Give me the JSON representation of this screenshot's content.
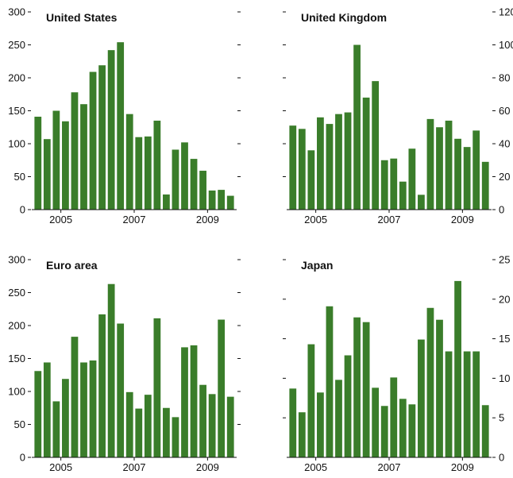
{
  "chart_data": [
    {
      "type": "bar",
      "title": "United States",
      "x_tick_labels": [
        "2005",
        "2007",
        "2009"
      ],
      "ylim": [
        0,
        300
      ],
      "y_ticks_left": [
        0,
        50,
        100,
        150,
        200,
        250,
        300
      ],
      "y_ticks_right": [],
      "right_dashes": 6,
      "values": [
        141,
        107,
        150,
        134,
        178,
        160,
        209,
        219,
        242,
        254,
        145,
        110,
        111,
        135,
        23,
        91,
        102,
        77,
        59,
        29,
        30,
        21
      ],
      "color": "#3a7d2a"
    },
    {
      "type": "bar",
      "title": "United Kingdom",
      "x_tick_labels": [
        "2005",
        "2007",
        "2009"
      ],
      "ylim": [
        0,
        120
      ],
      "y_ticks_left": [],
      "left_dashes": 6,
      "y_ticks_right": [
        0,
        20,
        40,
        60,
        80,
        100,
        120
      ],
      "values": [
        51,
        49,
        36,
        56,
        52,
        58,
        59,
        100,
        68,
        78,
        30,
        31,
        17,
        37,
        9,
        55,
        50,
        54,
        43,
        38,
        48,
        29
      ],
      "color": "#3a7d2a"
    },
    {
      "type": "bar",
      "title": "Euro area",
      "x_tick_labels": [
        "2005",
        "2007",
        "2009"
      ],
      "ylim": [
        0,
        300
      ],
      "y_ticks_left": [
        0,
        50,
        100,
        150,
        200,
        250,
        300
      ],
      "y_ticks_right": [],
      "right_dashes": 6,
      "values": [
        131,
        144,
        85,
        119,
        183,
        144,
        147,
        217,
        263,
        203,
        99,
        74,
        95,
        211,
        75,
        61,
        167,
        170,
        110,
        96,
        209,
        92
      ],
      "color": "#3a7d2a"
    },
    {
      "type": "bar",
      "title": "Japan",
      "x_tick_labels": [
        "2005",
        "2007",
        "2009"
      ],
      "ylim": [
        0,
        25
      ],
      "y_ticks_left": [],
      "left_dashes": 5,
      "y_ticks_right": [
        0,
        5,
        10,
        15,
        20,
        25
      ],
      "values": [
        8.7,
        5.7,
        14.3,
        8.2,
        19.1,
        9.8,
        12.9,
        17.7,
        17.1,
        8.8,
        6.5,
        10.1,
        7.4,
        6.7,
        14.9,
        18.9,
        17.4,
        13.4,
        22.3,
        13.4,
        13.4,
        6.6
      ],
      "color": "#3a7d2a"
    }
  ]
}
